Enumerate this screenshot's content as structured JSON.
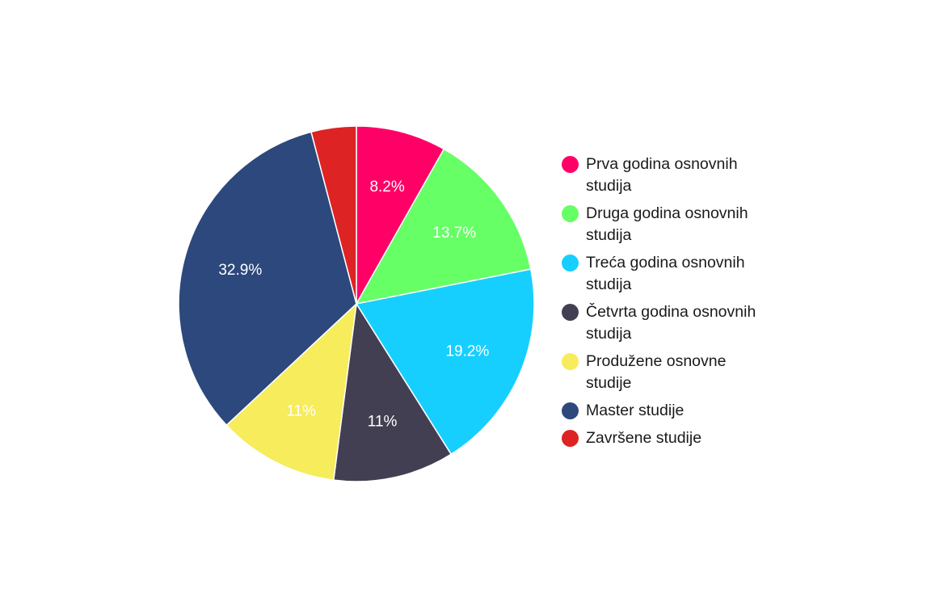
{
  "chart_data": {
    "type": "pie",
    "title": "",
    "legend_position": "right",
    "slices": [
      {
        "label": "Prva godina osnovnih studija",
        "value": 8.2,
        "display": "8.2%",
        "color": "#ff0066"
      },
      {
        "label": "Druga godina osnovnih studija",
        "value": 13.7,
        "display": "13.7%",
        "color": "#66ff66"
      },
      {
        "label": "Treća godina osnovnih studija",
        "value": 19.2,
        "display": "19.2%",
        "color": "#16cfff"
      },
      {
        "label": "Četvrta godina osnovnih studija",
        "value": 11,
        "display": "11%",
        "color": "#433f52"
      },
      {
        "label": "Produžene osnovne studije",
        "value": 11,
        "display": "11%",
        "color": "#f6ec5c"
      },
      {
        "label": "Master studije",
        "value": 32.9,
        "display": "32.9%",
        "color": "#2c487c"
      },
      {
        "label": "Završene studije",
        "value": 4.1,
        "display": "",
        "color": "#dd2323"
      }
    ]
  }
}
